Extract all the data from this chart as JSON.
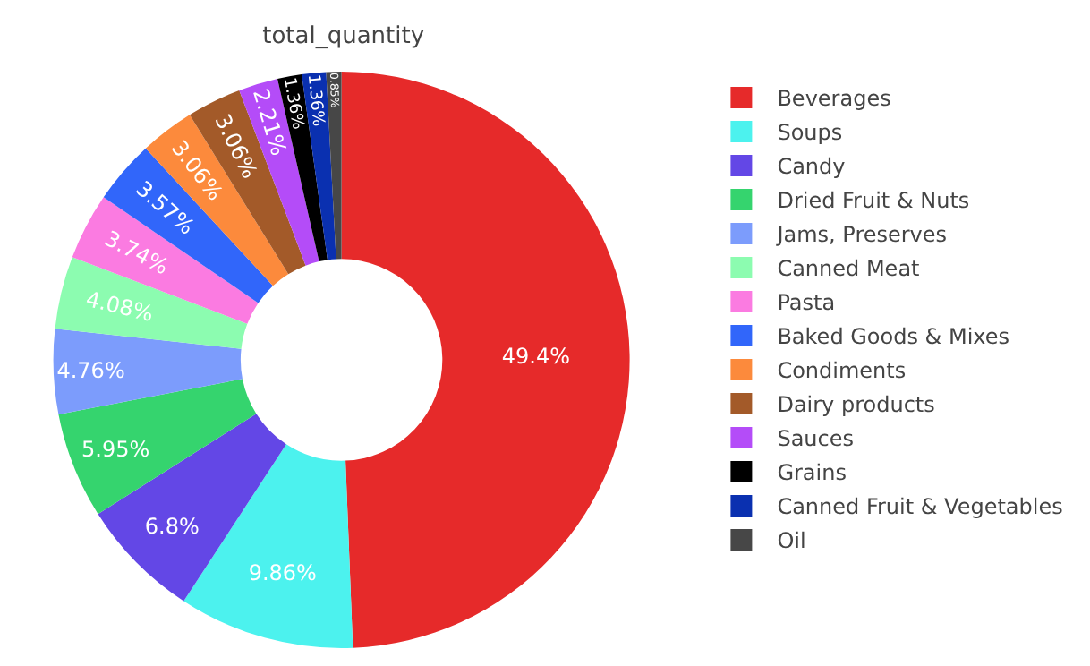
{
  "chart_data": {
    "type": "donut",
    "title": "total_quantity",
    "categories": [
      "Beverages",
      "Soups",
      "Candy",
      "Dried Fruit & Nuts",
      "Jams, Preserves",
      "Canned Meat",
      "Pasta",
      "Baked Goods & Mixes",
      "Condiments",
      "Dairy products",
      "Sauces",
      "Grains",
      "Canned Fruit & Vegetables",
      "Oil"
    ],
    "values": [
      49.4,
      9.86,
      6.8,
      5.95,
      4.76,
      4.08,
      3.74,
      3.57,
      3.06,
      3.06,
      2.21,
      1.36,
      1.36,
      0.85
    ],
    "value_labels": [
      "49.4%",
      "9.86%",
      "6.8%",
      "5.95%",
      "4.76%",
      "4.08%",
      "3.74%",
      "3.57%",
      "3.06%",
      "3.06%",
      "2.21%",
      "1.36%",
      "1.36%",
      "0.85%"
    ],
    "colors": [
      "#e62a2a",
      "#4cf2ee",
      "#6347e6",
      "#35d46e",
      "#7c9cfc",
      "#8cfcb0",
      "#fb7be1",
      "#3166fa",
      "#fc8a3c",
      "#a35a29",
      "#b44cf8",
      "#000000",
      "#0a30b0",
      "#474747"
    ],
    "legend": "right"
  }
}
